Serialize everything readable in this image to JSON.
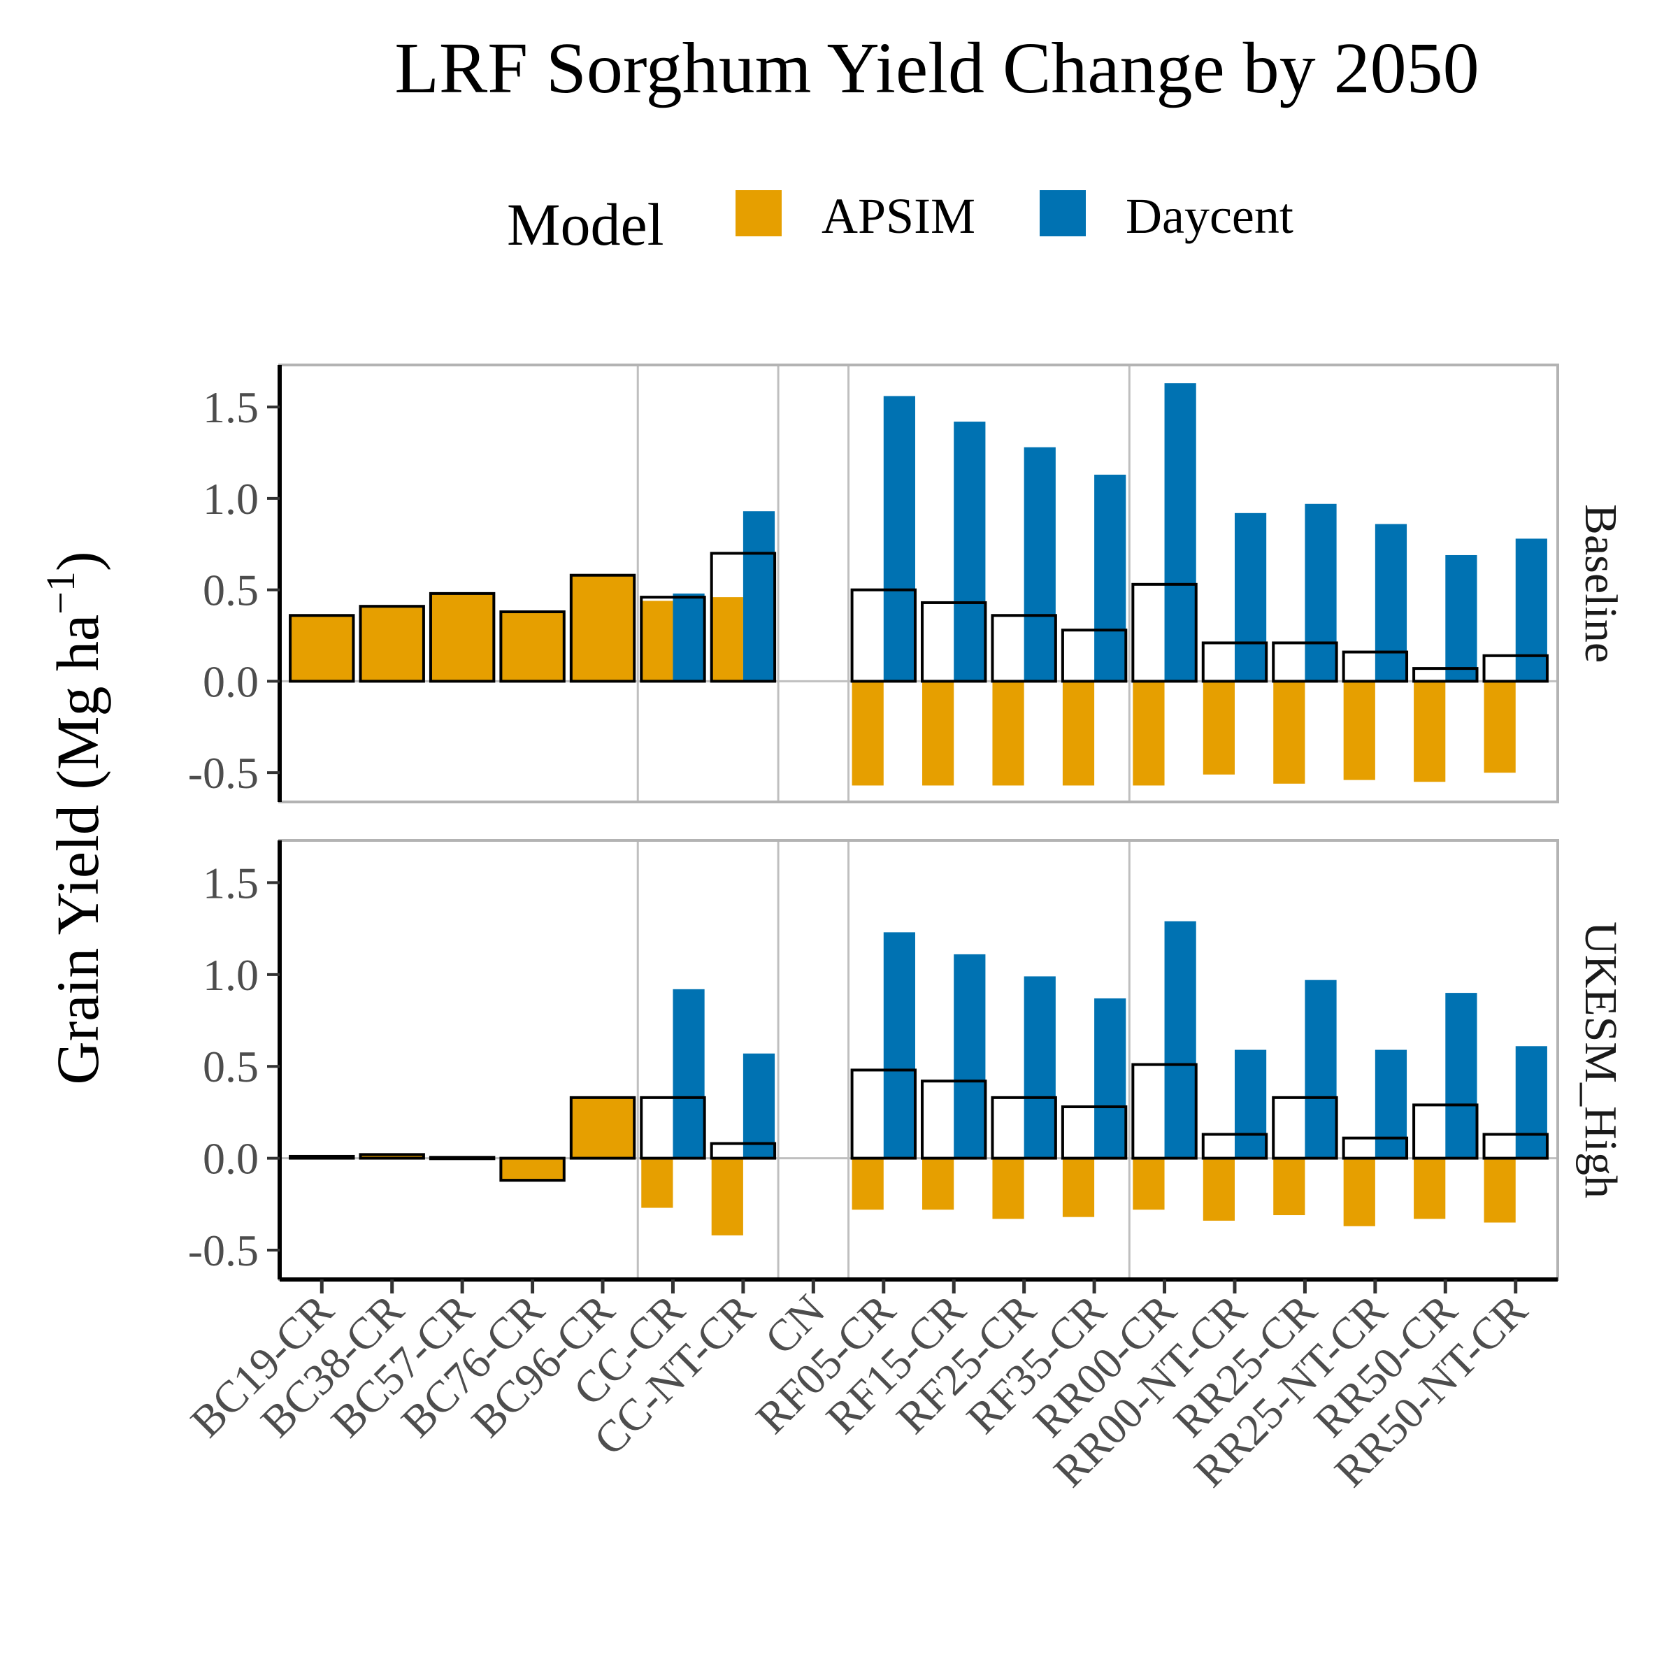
{
  "chart_data": {
    "type": "bar",
    "title": "LRF Sorghum Yield Change by 2050",
    "ylabel": "Grain Yield (Mg ha",
    "ylabel_superscript": "−1",
    "ylabel_close": ")",
    "ylim": [
      -0.66,
      1.73
    ],
    "yticks": [
      -0.5,
      0.0,
      0.5,
      1.0,
      1.5
    ],
    "ytick_labels": [
      "-0.5",
      "0.0",
      "0.5",
      "1.0",
      "1.5"
    ],
    "grid": "vertical lines at group boundaries",
    "legend": {
      "title": "Model",
      "placement": "top",
      "entries": [
        {
          "name": "APSIM",
          "color": "#E69F00"
        },
        {
          "name": "Daycent",
          "color": "#0072B2"
        }
      ]
    },
    "categories": [
      "BC19-CR",
      "BC38-CR",
      "BC57-CR",
      "BC76-CR",
      "BC96-CR",
      "CC-CR",
      "CC-NT-CR",
      "CN",
      "RF05-CR",
      "RF15-CR",
      "RF25-CR",
      "RF35-CR",
      "RR00-CR",
      "RR00-NT-CR",
      "RR25-CR",
      "RR25-NT-CR",
      "RR50-CR",
      "RR50-NT-CR"
    ],
    "panels": [
      {
        "name": "Baseline",
        "series": [
          {
            "name": "APSIM",
            "values": [
              0.36,
              0.41,
              0.48,
              0.38,
              0.58,
              0.44,
              0.46,
              null,
              -0.57,
              -0.57,
              -0.57,
              -0.57,
              -0.57,
              -0.51,
              -0.56,
              -0.54,
              -0.55,
              -0.5
            ]
          },
          {
            "name": "Daycent",
            "values": [
              null,
              null,
              null,
              null,
              null,
              0.48,
              0.93,
              null,
              1.56,
              1.42,
              1.28,
              1.13,
              1.63,
              0.92,
              0.97,
              0.86,
              0.69,
              0.78
            ]
          }
        ],
        "mean": [
          0.36,
          0.41,
          0.48,
          0.38,
          0.58,
          0.46,
          0.7,
          null,
          0.5,
          0.43,
          0.36,
          0.28,
          0.53,
          0.21,
          0.21,
          0.16,
          0.07,
          0.14
        ]
      },
      {
        "name": "UKESM_High",
        "series": [
          {
            "name": "APSIM",
            "values": [
              0.01,
              0.02,
              0.005,
              -0.12,
              0.33,
              -0.27,
              -0.42,
              null,
              -0.28,
              -0.28,
              -0.33,
              -0.32,
              -0.28,
              -0.34,
              -0.31,
              -0.37,
              -0.33,
              -0.35
            ]
          },
          {
            "name": "Daycent",
            "values": [
              null,
              null,
              null,
              null,
              null,
              0.92,
              0.57,
              null,
              1.23,
              1.11,
              0.99,
              0.87,
              1.29,
              0.59,
              0.97,
              0.59,
              0.9,
              0.61
            ]
          }
        ],
        "mean": [
          0.01,
          0.02,
          0.005,
          -0.12,
          0.33,
          0.33,
          0.08,
          null,
          0.48,
          0.42,
          0.33,
          0.28,
          0.51,
          0.13,
          0.33,
          0.11,
          0.29,
          0.13
        ]
      }
    ]
  }
}
